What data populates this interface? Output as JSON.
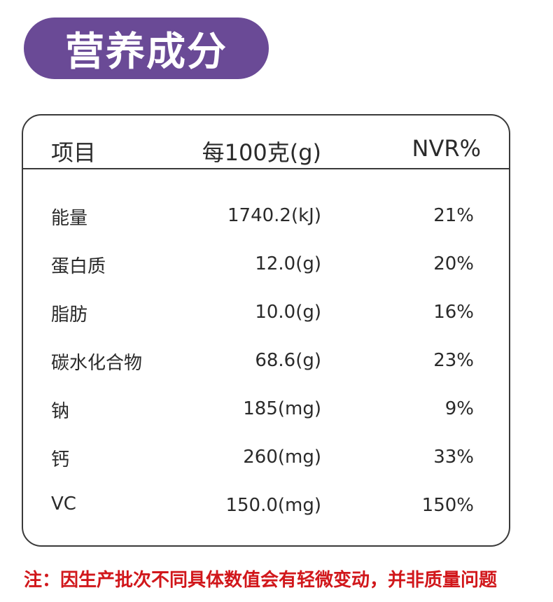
{
  "title": "营养成分",
  "table": {
    "headers": {
      "item": "项目",
      "per_100g": "每100克(g)",
      "nvr": "NVR%"
    },
    "rows": [
      {
        "item": "能量",
        "amount": "1740.2(kJ)",
        "nvr": "21%"
      },
      {
        "item": "蛋白质",
        "amount": "12.0(g)",
        "nvr": "20%"
      },
      {
        "item": "脂肪",
        "amount": "10.0(g)",
        "nvr": "16%"
      },
      {
        "item": "碳水化合物",
        "amount": "68.6(g)",
        "nvr": "23%"
      },
      {
        "item": "钠",
        "amount": "185(mg)",
        "nvr": "9%"
      },
      {
        "item": "钙",
        "amount": "260(mg)",
        "nvr": "33%"
      },
      {
        "item": "VC",
        "amount": "150.0(mg)",
        "nvr": "150%"
      }
    ]
  },
  "note": "注：因生产批次不同具体数值会有轻微变动，并非质量问题",
  "colors": {
    "title_bg": "#6a4a96",
    "title_text": "#ffffff",
    "border": "#3a3a3a",
    "note_text": "#d1171b"
  }
}
